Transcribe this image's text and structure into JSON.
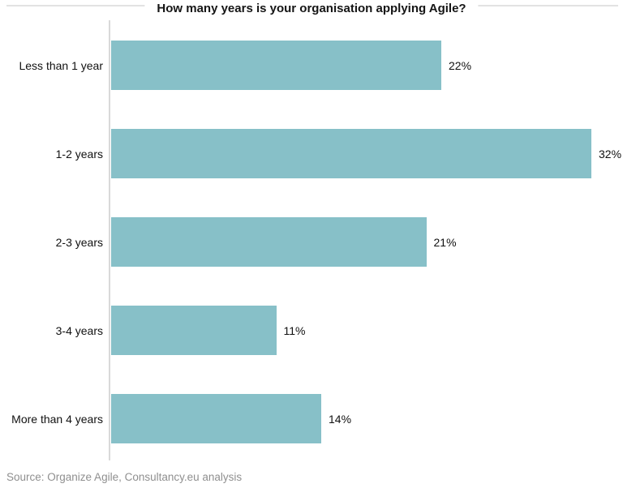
{
  "header": {
    "title": "How many years is your organisation applying Agile?"
  },
  "footer": {
    "source_note": "Source: Organize Agile, Consultancy.eu analysis"
  },
  "chart_data": {
    "type": "bar",
    "orientation": "horizontal",
    "title": "How many years is your organisation applying Agile?",
    "categories": [
      "Less than 1 year",
      "1-2 years",
      "2-3 years",
      "3-4 years",
      "More than 4 years"
    ],
    "values": [
      22,
      32,
      21,
      11,
      14
    ],
    "value_labels": [
      "22%",
      "32%",
      "21%",
      "11%",
      "14%"
    ],
    "xlabel": "",
    "ylabel": "",
    "xlim": [
      0,
      34
    ],
    "grid": false,
    "legend": null,
    "data_labels_position": "end-of-bar",
    "bar_color": "#87c0c8",
    "axis_line_color": "#d9d9d9",
    "top_rule_color": "#e2e2e2",
    "text_color": "#111111",
    "source_text_color": "#8f8f8f",
    "source_note": "Source: Organize Agile, Consultancy.eu analysis"
  }
}
